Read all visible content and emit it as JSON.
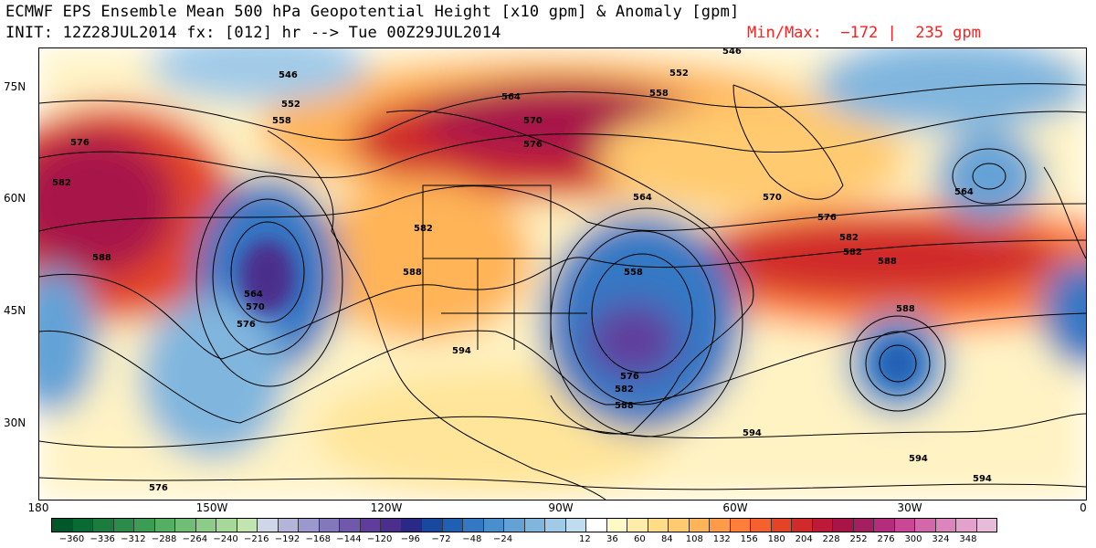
{
  "header": {
    "title_line1": "ECMWF EPS Ensemble Mean 500 hPa Geopotential Height [x10 gpm] & Anomaly [gpm]",
    "title_line2": "INIT: 12Z28JUL2014 fx: [012] hr --> Tue 00Z29JUL2014",
    "minmax": "Min/Max:  −172 |  235 gpm"
  },
  "map": {
    "lat_labels": [
      "75N",
      "60N",
      "45N",
      "30N"
    ],
    "lon_labels": [
      "180",
      "150W",
      "120W",
      "90W",
      "60W",
      "30W",
      "0"
    ],
    "height_labels": [
      "546",
      "552",
      "558",
      "576",
      "582",
      "588",
      "564",
      "570",
      "576",
      "594",
      "558",
      "564",
      "576",
      "582",
      "570",
      "564",
      "552",
      "588",
      "582",
      "576",
      "588",
      "594",
      "594",
      "594",
      "588",
      "582",
      "576",
      "570",
      "564",
      "546",
      "588",
      "582",
      "576",
      "558"
    ]
  },
  "colorbar": {
    "labels": [
      "−360",
      "−336",
      "−312",
      "−288",
      "−264",
      "−240",
      "−216",
      "−192",
      "−168",
      "−144",
      "−120",
      "−96",
      "−72",
      "−48",
      "−24",
      "12",
      "36",
      "60",
      "84",
      "108",
      "132",
      "156",
      "180",
      "204",
      "228",
      "252",
      "276",
      "300",
      "324",
      "348"
    ],
    "colors": [
      "#00582a",
      "#0a6a34",
      "#1a7c3e",
      "#2a8c48",
      "#3c9c54",
      "#54ae64",
      "#70be76",
      "#8ccc88",
      "#a6d89a",
      "#c2e4b0",
      "#cfd6e8",
      "#b4b4da",
      "#9a98cc",
      "#8478bc",
      "#7058aa",
      "#603c9c",
      "#4c2e8c",
      "#2a2a86",
      "#1848a0",
      "#2060b4",
      "#3478c4",
      "#4a8ece",
      "#64a2d6",
      "#80b6de",
      "#a0cae8",
      "#c0dcef",
      "#ffffff",
      "#fff8c8",
      "#ffeca8",
      "#ffdc88",
      "#ffca70",
      "#ffb458",
      "#ff9a48",
      "#ff7e3a",
      "#f4602e",
      "#e44426",
      "#d02a2a",
      "#bc1a38",
      "#a81448",
      "#a41e60",
      "#b42c7c",
      "#c84896",
      "#d466aa",
      "#dc84bc",
      "#e2a2cc",
      "#e6bcda"
    ]
  }
}
